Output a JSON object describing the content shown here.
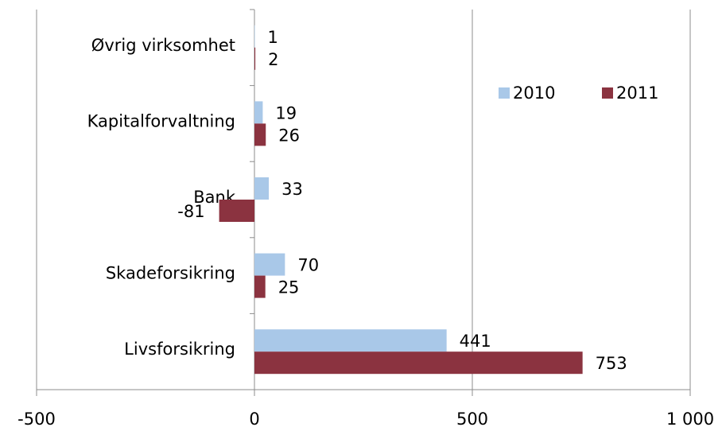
{
  "chart_data": {
    "type": "barh",
    "categories": [
      "Livsforsikring",
      "Skadeforsikring",
      "Bank",
      "Kapitalforvaltning",
      "Øvrig virksomhet"
    ],
    "series": [
      {
        "name": "2010",
        "color": "#a9c8e8",
        "values": [
          441,
          70,
          33,
          19,
          1
        ]
      },
      {
        "name": "2011",
        "color": "#8b3340",
        "values": [
          753,
          25,
          -81,
          26,
          2
        ]
      }
    ],
    "xlim": [
      -500,
      1000
    ],
    "xticks": [
      -500,
      0,
      500,
      {
        "value": 1000,
        "label": "1 000"
      }
    ],
    "grid": true,
    "legend": "upper right"
  }
}
